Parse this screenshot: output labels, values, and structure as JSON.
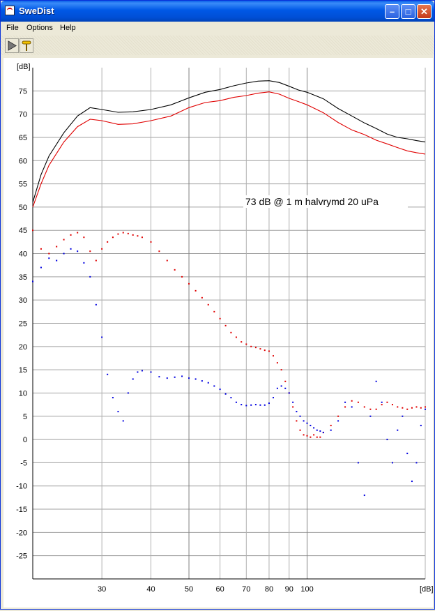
{
  "window": {
    "title": "SweDist"
  },
  "menu": {
    "items": [
      "File",
      "Options",
      "Help"
    ]
  },
  "toolbar": {
    "icons": [
      "play-icon",
      "probe-icon"
    ]
  },
  "chart_data": {
    "type": "line",
    "xscale": "log",
    "xlim": [
      20,
      200
    ],
    "ylim": [
      -30,
      80
    ],
    "ylabel": "[dB]",
    "xlabel": "[dB]",
    "yticks": [
      75,
      70,
      65,
      60,
      55,
      50,
      45,
      40,
      35,
      30,
      25,
      20,
      15,
      10,
      5,
      0,
      -5,
      -10,
      -15,
      -20,
      -25
    ],
    "xticks": [
      30,
      40,
      50,
      60,
      70,
      80,
      90,
      100
    ],
    "annotation": "73 dB @ 1 m halvrymd 20 uPa",
    "grid": true,
    "series": [
      {
        "style": "line",
        "color": "#000000",
        "x": [
          20,
          21,
          22,
          24,
          26,
          28,
          30,
          33,
          36,
          40,
          45,
          50,
          55,
          60,
          65,
          70,
          75,
          80,
          85,
          90,
          95,
          100,
          110,
          120,
          130,
          140,
          150,
          160,
          170,
          180,
          190,
          200
        ],
        "y": [
          51,
          57,
          61,
          66,
          69.6,
          71.4,
          71,
          70.4,
          70.5,
          71,
          72,
          73.5,
          74.7,
          75.3,
          76.1,
          76.7,
          77.1,
          77.2,
          76.8,
          76,
          75.2,
          74.7,
          73.3,
          71.2,
          69.6,
          68.1,
          66.9,
          65.7,
          65,
          64.7,
          64.3,
          64
        ]
      },
      {
        "style": "line",
        "color": "#e00000",
        "x": [
          20,
          21,
          22,
          24,
          26,
          28,
          30,
          33,
          36,
          40,
          45,
          50,
          55,
          60,
          65,
          70,
          75,
          80,
          85,
          90,
          95,
          100,
          110,
          120,
          130,
          140,
          150,
          160,
          170,
          180,
          190,
          200
        ],
        "y": [
          50,
          55,
          59,
          64,
          67.3,
          68.9,
          68.6,
          67.8,
          67.9,
          68.6,
          69.6,
          71.4,
          72.5,
          72.9,
          73.6,
          74,
          74.5,
          74.8,
          74.3,
          73.4,
          72.7,
          72,
          70.3,
          68.2,
          66.6,
          65.6,
          64.4,
          63.6,
          62.8,
          62.1,
          61.7,
          61.4
        ]
      },
      {
        "style": "dots",
        "color": "#e00000",
        "x": [
          20,
          21,
          22,
          23,
          24,
          25,
          26,
          27,
          28,
          29,
          30,
          31,
          32,
          33,
          34,
          35,
          36,
          37,
          38,
          40,
          42,
          44,
          46,
          48,
          50,
          52,
          54,
          56,
          58,
          60,
          62,
          64,
          66,
          68,
          70,
          72,
          74,
          76,
          78,
          80,
          82,
          84,
          86,
          88,
          90,
          92,
          94,
          96,
          98,
          100,
          102,
          104,
          106,
          108,
          110,
          115,
          120,
          125,
          130,
          135,
          140,
          145,
          150,
          155,
          160,
          165,
          170,
          175,
          180,
          185,
          190,
          195,
          200
        ],
        "y": [
          45,
          41,
          40,
          41.5,
          43,
          44,
          44.5,
          43.5,
          40.5,
          38.5,
          41,
          42.5,
          43.5,
          44.2,
          44.5,
          44.3,
          44,
          43.8,
          43.5,
          42.5,
          40.5,
          38.5,
          36.5,
          35,
          33.5,
          32,
          30.5,
          29,
          27.5,
          26,
          24.5,
          23,
          22,
          21,
          20.5,
          20,
          19.8,
          19.5,
          19.2,
          19,
          18,
          16.5,
          15,
          12.5,
          10,
          7,
          4,
          2,
          1,
          0.8,
          0.5,
          1,
          0.5,
          0.5,
          1.5,
          3,
          5,
          7,
          8.3,
          8,
          7,
          6.5,
          6.5,
          7.5,
          8,
          7.5,
          7,
          6.8,
          6.5,
          6.8,
          7,
          6.8,
          7
        ]
      },
      {
        "style": "dots",
        "color": "#0000e0",
        "x": [
          20,
          21,
          22,
          23,
          24,
          25,
          26,
          27,
          28,
          29,
          30,
          31,
          32,
          33,
          34,
          35,
          36,
          37,
          38,
          40,
          42,
          44,
          46,
          48,
          50,
          52,
          54,
          56,
          58,
          60,
          62,
          64,
          66,
          68,
          70,
          72,
          74,
          76,
          78,
          80,
          82,
          84,
          86,
          88,
          90,
          92,
          94,
          96,
          98,
          100,
          102,
          104,
          106,
          108,
          110,
          115,
          120,
          125,
          130,
          135,
          140,
          145,
          150,
          155,
          160,
          165,
          170,
          175,
          180,
          185,
          190,
          195,
          200
        ],
        "y": [
          34,
          37,
          39,
          38.5,
          40,
          41,
          40.5,
          38,
          35,
          29,
          22,
          14,
          9,
          6,
          4,
          10,
          13,
          14.5,
          14.8,
          14.5,
          13.5,
          13.2,
          13.4,
          13.6,
          13.2,
          13,
          12.6,
          12.2,
          11.5,
          10.8,
          9.8,
          9,
          8,
          7.5,
          7.3,
          7.4,
          7.5,
          7.4,
          7.4,
          7.8,
          9,
          11,
          11.5,
          11,
          10,
          8,
          6,
          5,
          4,
          3.5,
          3,
          2.5,
          2,
          1.8,
          1.5,
          2,
          4,
          8,
          7,
          -5,
          -12,
          5,
          12.5,
          8,
          0,
          -5,
          2,
          5,
          -3,
          -9,
          -5,
          3,
          6.5
        ]
      }
    ]
  }
}
